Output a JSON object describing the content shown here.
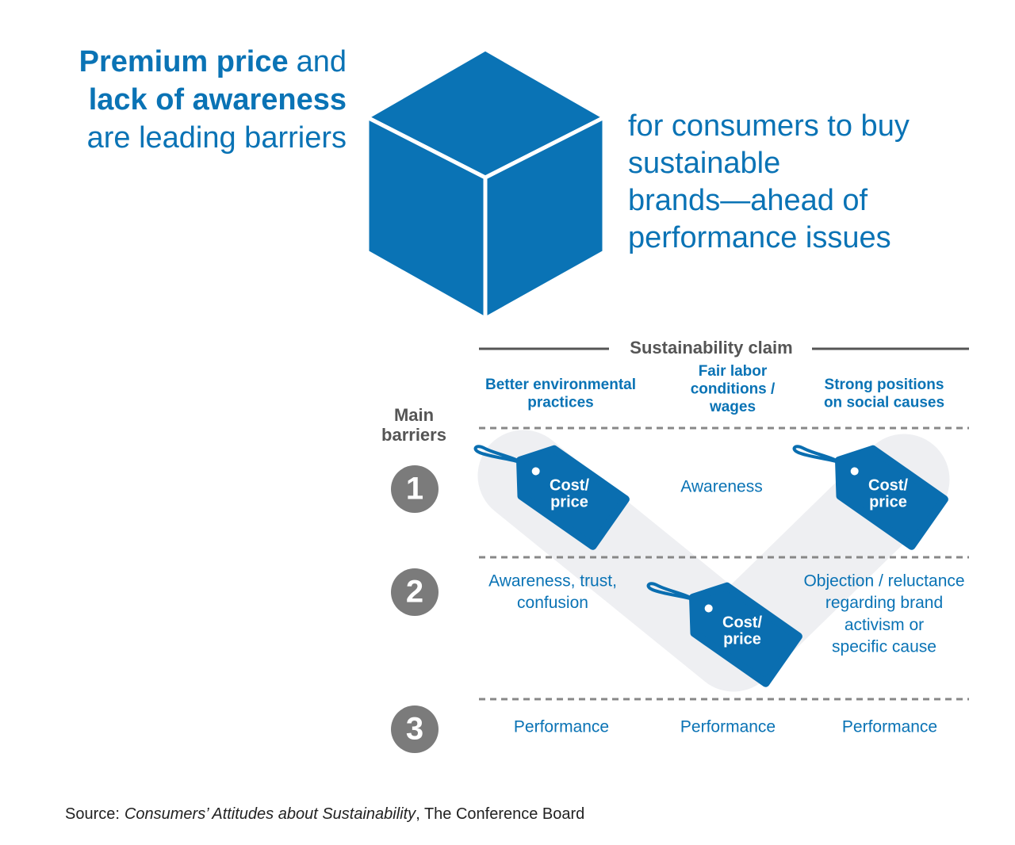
{
  "header": {
    "line1_bold": "Premium price",
    "line1_rest": "and",
    "line2_bold": "lack of awareness",
    "line3": "are leading barriers"
  },
  "subheader": {
    "lines": [
      "for consumers to buy",
      "sustainable",
      "brands—ahead of",
      "performance issues"
    ]
  },
  "table": {
    "title": "Sustainability claim",
    "row_header": [
      "Main",
      "barriers"
    ],
    "columns": [
      [
        "Better environmental",
        "practices"
      ],
      [
        "Fair labor",
        "conditions /",
        "wages"
      ],
      [
        "Strong positions",
        "on social causes"
      ]
    ],
    "rows": [
      {
        "number": "1",
        "cells": [
          [
            "Cost/",
            "price"
          ],
          [
            "Awareness"
          ],
          [
            "Cost/",
            "price"
          ]
        ]
      },
      {
        "number": "2",
        "cells": [
          [
            "Awareness, trust,",
            "confusion"
          ],
          [
            "Cost/",
            "price"
          ],
          [
            "Objection / reluctance",
            "regarding brand",
            "activism or",
            "specific cause"
          ]
        ]
      },
      {
        "number": "3",
        "cells": [
          [
            "Performance"
          ],
          [
            "Performance"
          ],
          [
            "Performance"
          ]
        ]
      }
    ]
  },
  "source": {
    "label": "Source:",
    "title": "Consumers’ Attitudes about Sustainability",
    "rest": ", The Conference Board"
  }
}
